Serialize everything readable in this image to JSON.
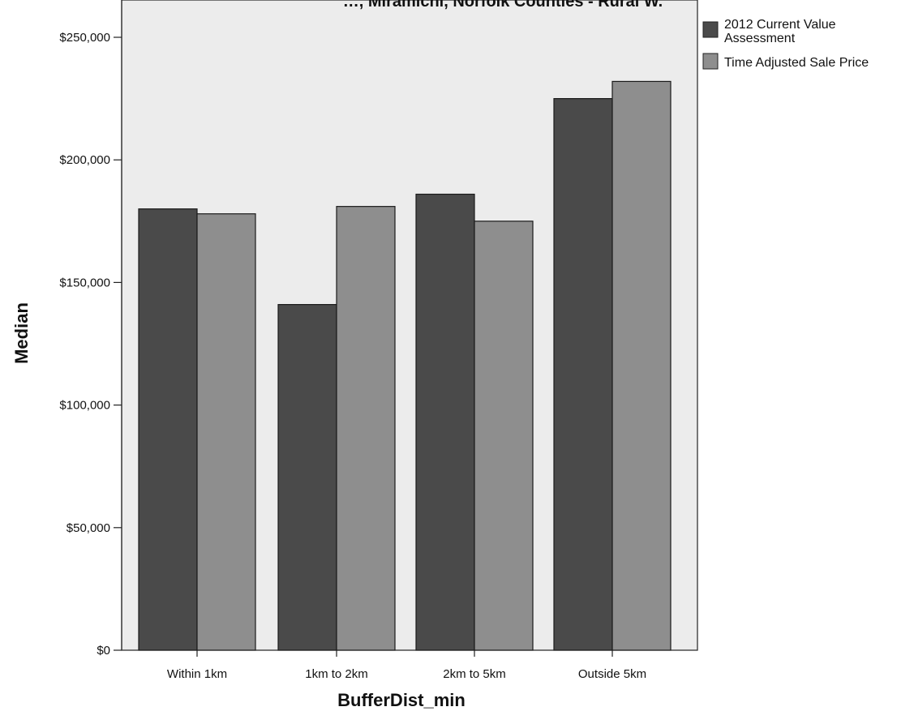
{
  "chart_data": {
    "type": "bar",
    "title": "…, Miramichi, Norfolk Counties - Rural W.",
    "xlabel": "BufferDist_min",
    "ylabel": "Median",
    "categories": [
      "Within 1km",
      "1km to 2km",
      "2km to 5km",
      "Outside 5km"
    ],
    "series": [
      {
        "name": "2012 Current Value Assessment",
        "values": [
          180000,
          141000,
          186000,
          225000
        ],
        "color": "#4a4a4a"
      },
      {
        "name": "Time Adjusted Sale Price",
        "values": [
          178000,
          181000,
          175000,
          232000
        ],
        "color": "#8e8e8e"
      }
    ],
    "ylim": [
      0,
      250000
    ],
    "yticks": [
      "$0",
      "$50,000",
      "$100,000",
      "$150,000",
      "$200,000",
      "$250,000"
    ],
    "ytick_values": [
      0,
      50000,
      100000,
      150000,
      200000,
      250000
    ],
    "grid": false,
    "legend_position": "top-right",
    "plot_background": "#ececec"
  }
}
